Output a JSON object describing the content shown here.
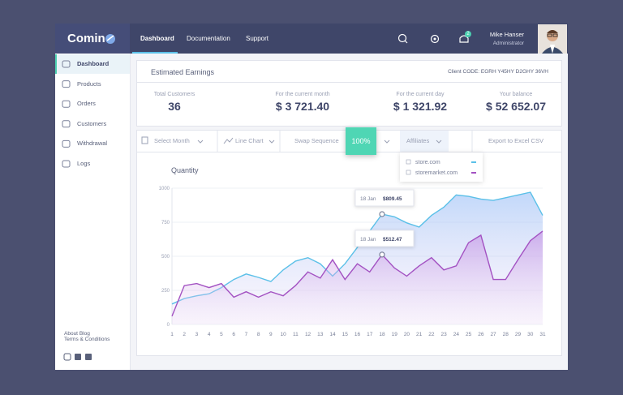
{
  "header": {
    "logo": "Comin",
    "nav": [
      "Dashboard",
      "Documentation",
      "Support"
    ],
    "notifications": "2",
    "user_name": "Mike Hanser",
    "user_role": "Administrator"
  },
  "sidebar": {
    "menu": [
      "Dashboard",
      "Products",
      "Orders",
      "Customers",
      "Withdrawal",
      "Logs"
    ],
    "footer": [
      "About",
      "Blog",
      "Terms & Conditions"
    ]
  },
  "earnings": {
    "title": "Estimated Earnings",
    "client_code": "Client CODE: EGRH Y45HY D2GHY 36VH",
    "stats": [
      {
        "label": "Total Customers",
        "value": "36"
      },
      {
        "label": "For the current month",
        "value": "$ 3 721.40"
      },
      {
        "label": "For the current day",
        "value": "$ 1 321.92"
      },
      {
        "label": "Your balance",
        "value": "$ 52 652.07"
      }
    ]
  },
  "toolbar": {
    "month": "Select Month",
    "chart_type": "Line Chart",
    "swap": "Swap Sequence",
    "zoom": "100%",
    "affiliates": "Affiliates",
    "export": "Export to Excel CSV"
  },
  "chart_data": {
    "type": "line",
    "title": "Quantity",
    "x": [
      1,
      2,
      3,
      4,
      5,
      6,
      7,
      8,
      9,
      10,
      11,
      12,
      13,
      14,
      15,
      16,
      17,
      18,
      19,
      20,
      21,
      22,
      23,
      24,
      25,
      26,
      27,
      28,
      29,
      30,
      31
    ],
    "xlim": [
      1,
      31
    ],
    "ylim": [
      0,
      1000
    ],
    "yticks": [
      0,
      250,
      500,
      750,
      1000
    ],
    "grid": true,
    "series": [
      {
        "name": "store.com",
        "color": "#5bc0e8",
        "values": [
          150,
          190,
          210,
          225,
          270,
          330,
          370,
          345,
          315,
          400,
          465,
          490,
          445,
          355,
          445,
          565,
          685,
          809.45,
          790,
          745,
          715,
          800,
          860,
          950,
          940,
          920,
          910,
          930,
          950,
          970,
          800
        ],
        "value_labels": [
          null,
          null,
          null,
          null,
          null,
          null,
          null,
          null,
          null,
          null,
          null,
          null,
          null,
          null,
          null,
          null,
          null,
          "$809.45",
          null,
          null,
          null,
          null,
          null,
          null,
          null,
          null,
          null,
          null,
          null,
          null,
          null
        ]
      },
      {
        "name": "storemarket.com",
        "color": "#a352c2",
        "values": [
          60,
          285,
          300,
          270,
          300,
          200,
          240,
          200,
          240,
          210,
          285,
          385,
          340,
          475,
          330,
          445,
          385,
          512.47,
          415,
          355,
          430,
          490,
          400,
          430,
          600,
          655,
          330,
          330,
          475,
          615,
          685
        ],
        "value_labels": [
          null,
          null,
          null,
          null,
          null,
          null,
          null,
          null,
          null,
          null,
          null,
          null,
          null,
          null,
          null,
          null,
          null,
          "$512.47",
          null,
          null,
          null,
          null,
          null,
          null,
          null,
          null,
          null,
          null,
          null,
          null,
          null
        ]
      }
    ],
    "annotations": [
      "18 Jan",
      "18 Jan"
    ]
  }
}
